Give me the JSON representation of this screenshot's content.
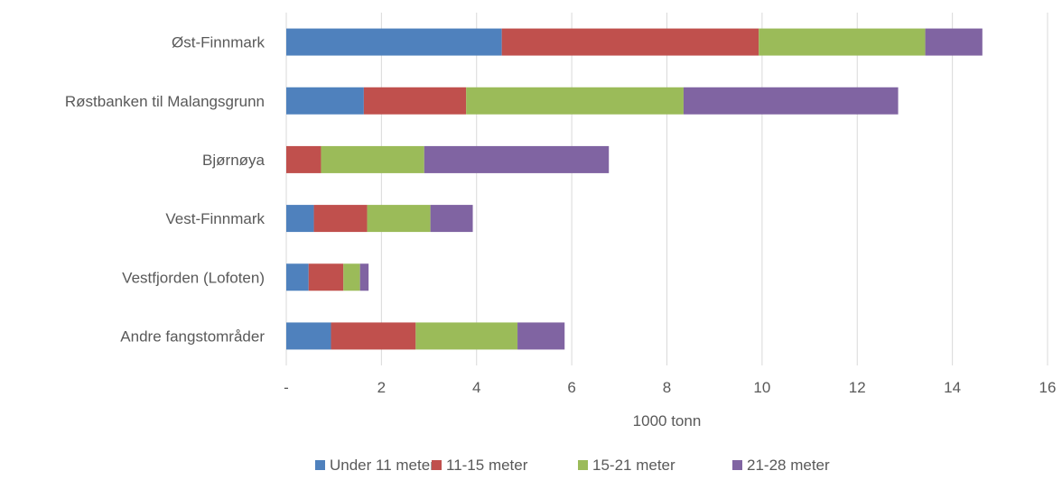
{
  "chart_data": {
    "type": "bar",
    "orientation": "horizontal",
    "stacked": true,
    "title": "",
    "xlabel": "1000 tonn",
    "ylabel": "",
    "xlim": [
      0,
      16
    ],
    "x_ticks": [
      {
        "value": 0,
        "label": "-"
      },
      {
        "value": 2,
        "label": "2"
      },
      {
        "value": 4,
        "label": "4"
      },
      {
        "value": 6,
        "label": "6"
      },
      {
        "value": 8,
        "label": "8"
      },
      {
        "value": 10,
        "label": "10"
      },
      {
        "value": 12,
        "label": "12"
      },
      {
        "value": 14,
        "label": "14"
      },
      {
        "value": 16,
        "label": "16"
      }
    ],
    "grid": "vertical",
    "legend_position": "bottom",
    "categories": [
      "Øst-Finnmark",
      "Røstbanken til Malangsgrunn",
      "Bjørnøya",
      "Vest-Finnmark",
      "Vestfjorden (Lofoten)",
      "Andre fangstområder"
    ],
    "series": [
      {
        "name": "Under 11 meter",
        "color": "#4f81bd",
        "values": [
          4.53,
          1.63,
          0.0,
          0.58,
          0.47,
          0.94
        ]
      },
      {
        "name": "11-15 meter",
        "color": "#c0504d",
        "values": [
          5.4,
          2.15,
          0.73,
          1.12,
          0.73,
          1.78
        ]
      },
      {
        "name": "15-21 meter",
        "color": "#9bbb59",
        "values": [
          3.5,
          4.57,
          2.17,
          1.33,
          0.35,
          2.14
        ]
      },
      {
        "name": "21-28 meter",
        "color": "#8064a2",
        "values": [
          1.2,
          4.51,
          3.88,
          0.89,
          0.18,
          0.99
        ]
      }
    ]
  }
}
